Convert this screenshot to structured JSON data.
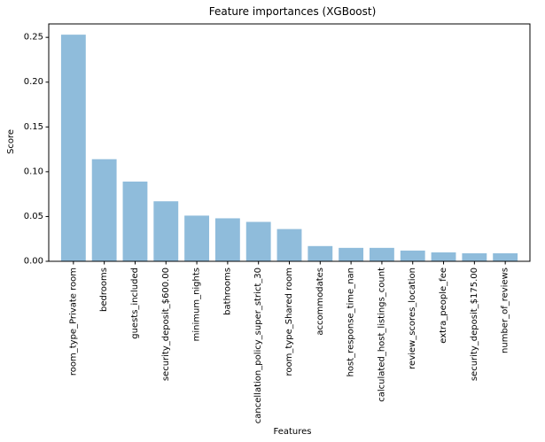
{
  "chart_data": {
    "type": "bar",
    "title": "Feature importances (XGBoost)",
    "xlabel": "Features",
    "ylabel": "Score",
    "categories": [
      "room_type_Private room",
      "bedrooms",
      "guests_included",
      "security_deposit_$600.00",
      "minimum_nights",
      "bathrooms",
      "cancellation_policy_super_strict_30",
      "room_type_Shared room",
      "accommodates",
      "host_response_time_nan",
      "calculated_host_listings_count",
      "review_scores_location",
      "extra_people_fee",
      "security_deposit_$175.00",
      "number_of_reviews"
    ],
    "values": [
      0.253,
      0.114,
      0.089,
      0.067,
      0.051,
      0.048,
      0.044,
      0.036,
      0.017,
      0.015,
      0.015,
      0.012,
      0.01,
      0.009,
      0.009
    ],
    "ylim": [
      0,
      0.265
    ],
    "yticks": [
      0.0,
      0.05,
      0.1,
      0.15,
      0.2,
      0.25
    ],
    "ytick_labels": [
      "0.00",
      "0.05",
      "0.10",
      "0.15",
      "0.20",
      "0.25"
    ],
    "bar_color": "#8fbcdb",
    "grid": false,
    "legend": "none"
  }
}
